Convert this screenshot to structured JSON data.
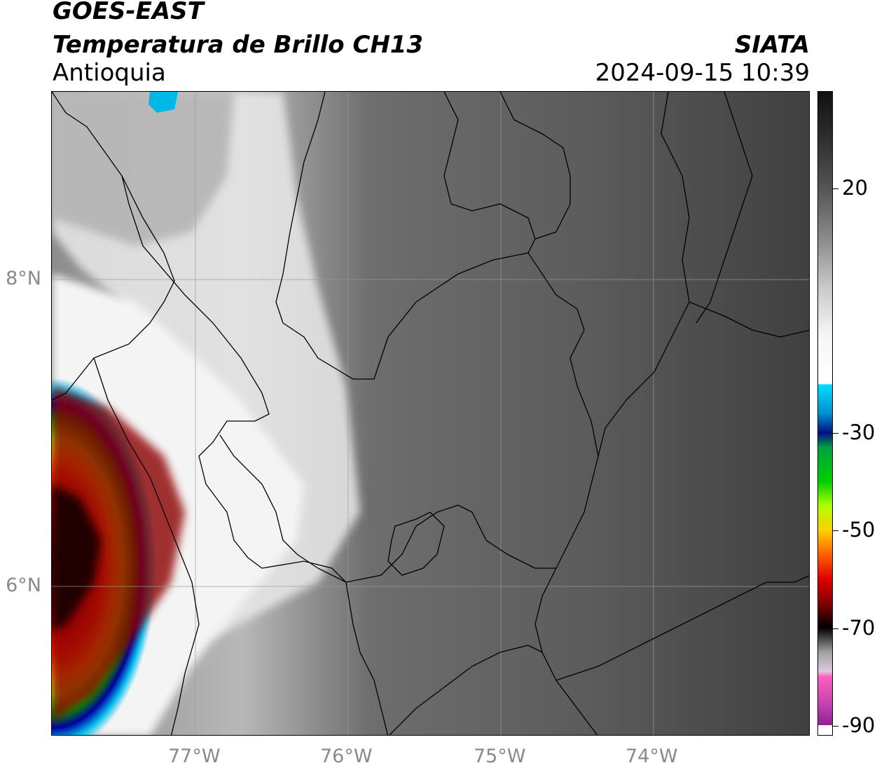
{
  "header": {
    "satellite": "GOES-EAST",
    "product": "Temperatura de Brillo CH13",
    "region": "Antioquia",
    "agency": "SIATA",
    "datetime": "2024-09-15 10:39"
  },
  "map": {
    "lat_labels": [
      "8°N",
      "6°N"
    ],
    "lon_labels": [
      "77°W",
      "76°W",
      "75°W",
      "74°W"
    ],
    "gridlines": true,
    "lon_range": [
      -77.95,
      -72.98
    ],
    "lat_range": [
      5.05,
      9.25
    ]
  },
  "colorbar": {
    "ticks": [
      "20",
      "-30",
      "-50",
      "-70",
      "-90"
    ],
    "tick_values": [
      20,
      -30,
      -50,
      -70,
      -90
    ],
    "range": [
      -92,
      40
    ],
    "unit": ""
  }
}
